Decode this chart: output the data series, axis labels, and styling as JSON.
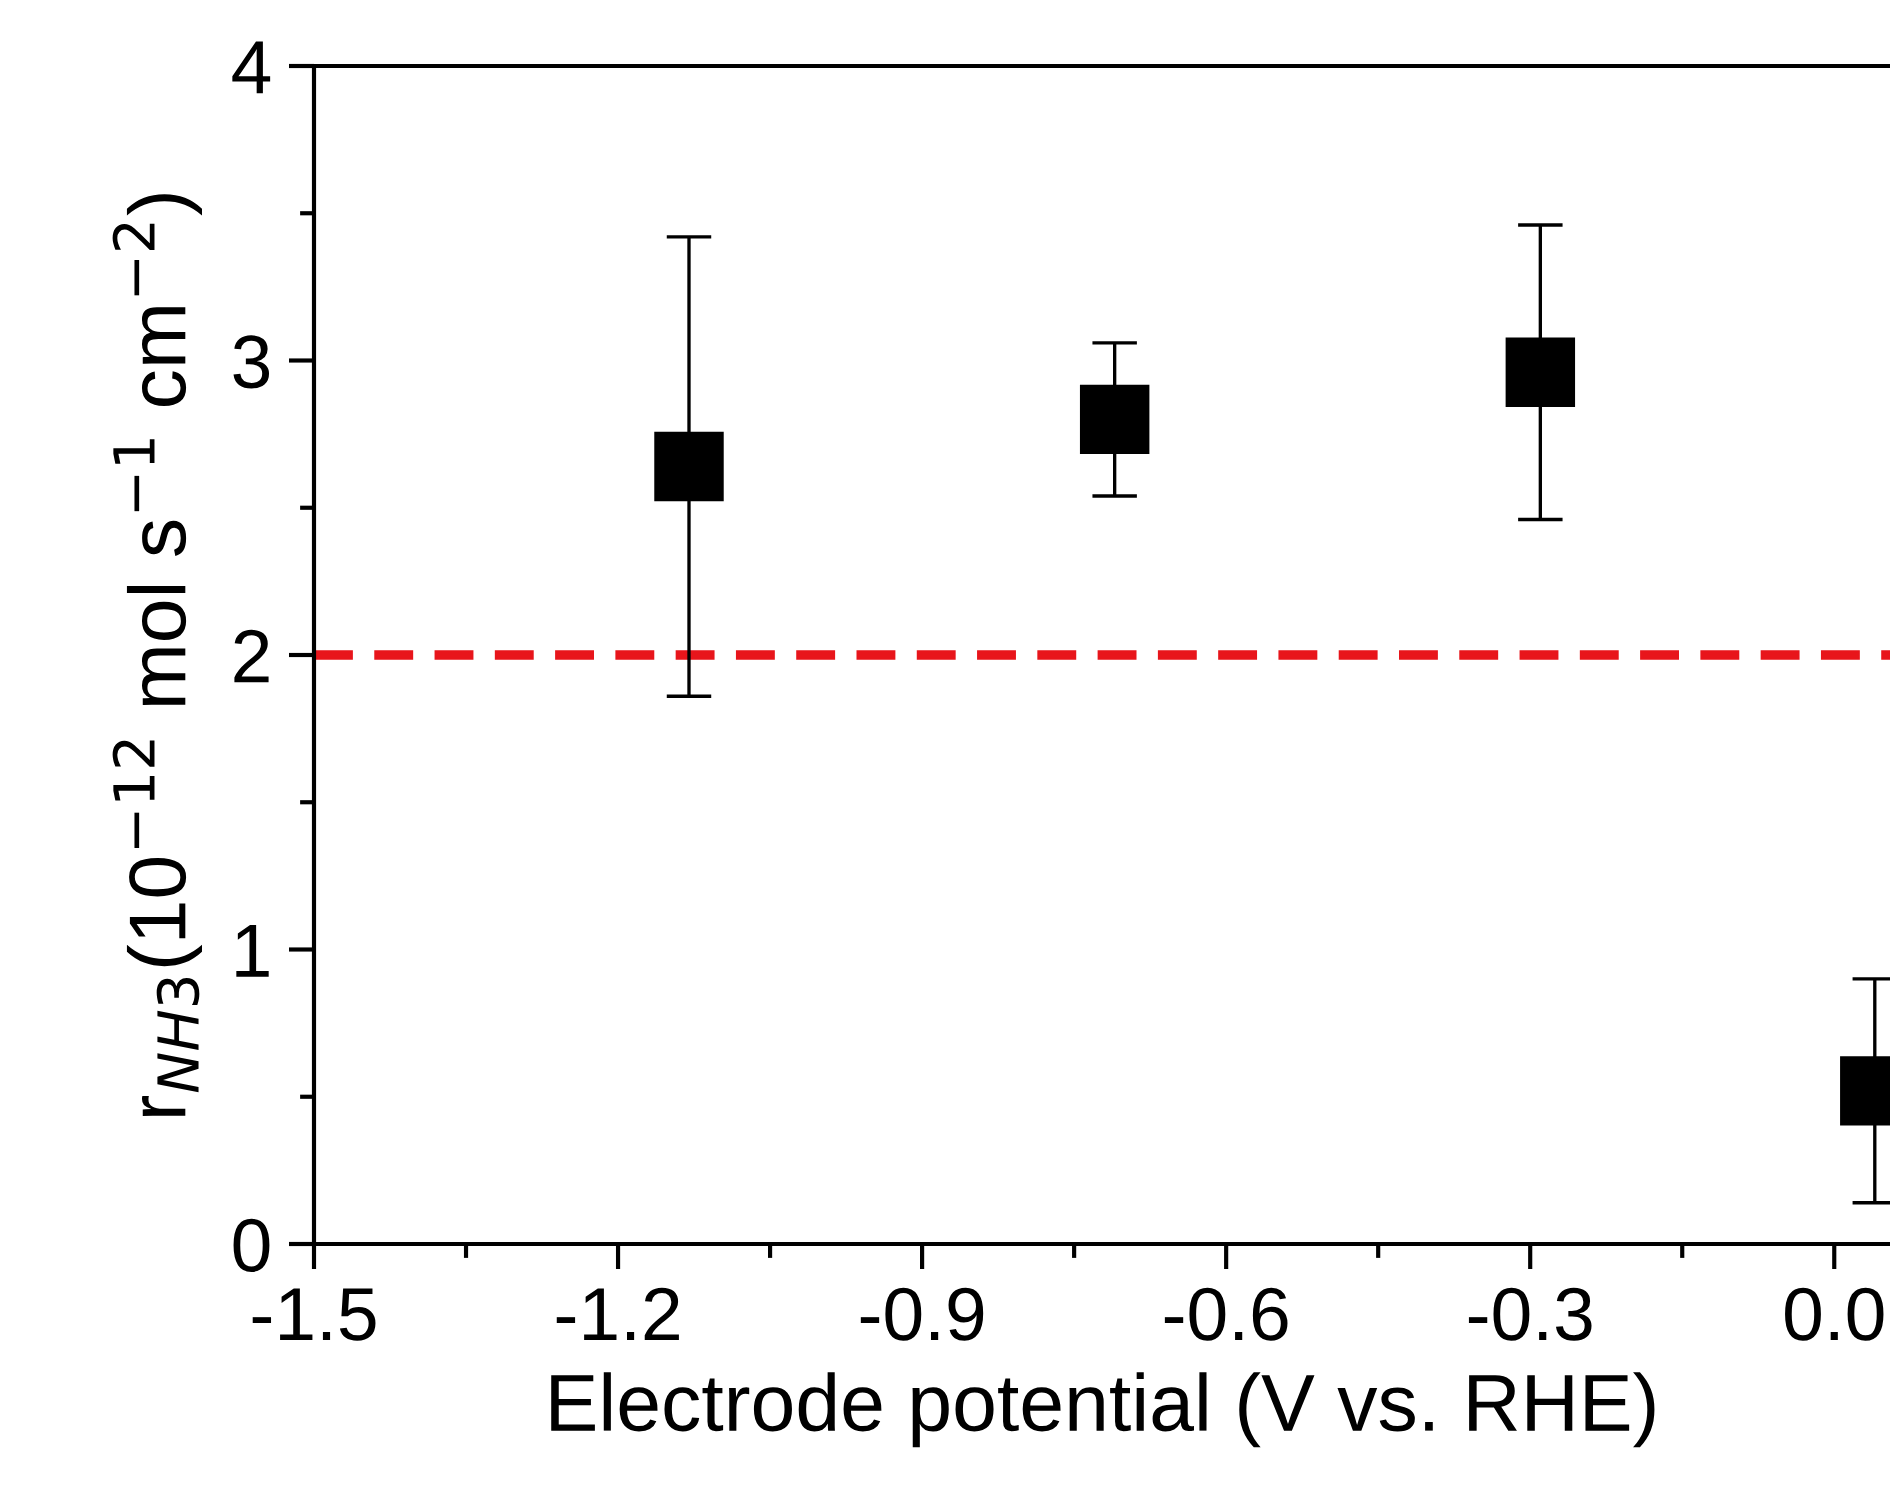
{
  "chart_data": {
    "type": "scatter",
    "xlabel": "Electrode potential (V vs. RHE)",
    "ylabel": "r$_{NH3}$(10$^{−12}$ mol s$^{−1}$ cm$^{−2}$)",
    "x": [
      -1.13,
      -0.71,
      -0.29,
      0.04
    ],
    "values": [
      2.64,
      2.8,
      2.96,
      0.52
    ],
    "errors": [
      0.78,
      0.26,
      0.5,
      0.38
    ],
    "color": "#000000",
    "marker": "square",
    "grid": false,
    "legend": false,
    "xlim": [
      -1.5,
      0.055
    ],
    "xticks": [
      {
        "value": -1.5,
        "label": "-1.5"
      },
      {
        "value": -1.2,
        "label": "-1.2"
      },
      {
        "value": -0.9,
        "label": "-0.9"
      },
      {
        "value": -0.6,
        "label": "-0.6"
      },
      {
        "value": -0.3,
        "label": "-0.3"
      },
      {
        "value": 0.0,
        "label": "0.0"
      }
    ],
    "ylim": [
      0,
      4
    ],
    "yticks": [
      0,
      1,
      2,
      3,
      4
    ],
    "ref_lines": [
      {
        "axis": "y",
        "value": 2,
        "color": "#e8151b",
        "line_style": "dashed"
      }
    ]
  }
}
